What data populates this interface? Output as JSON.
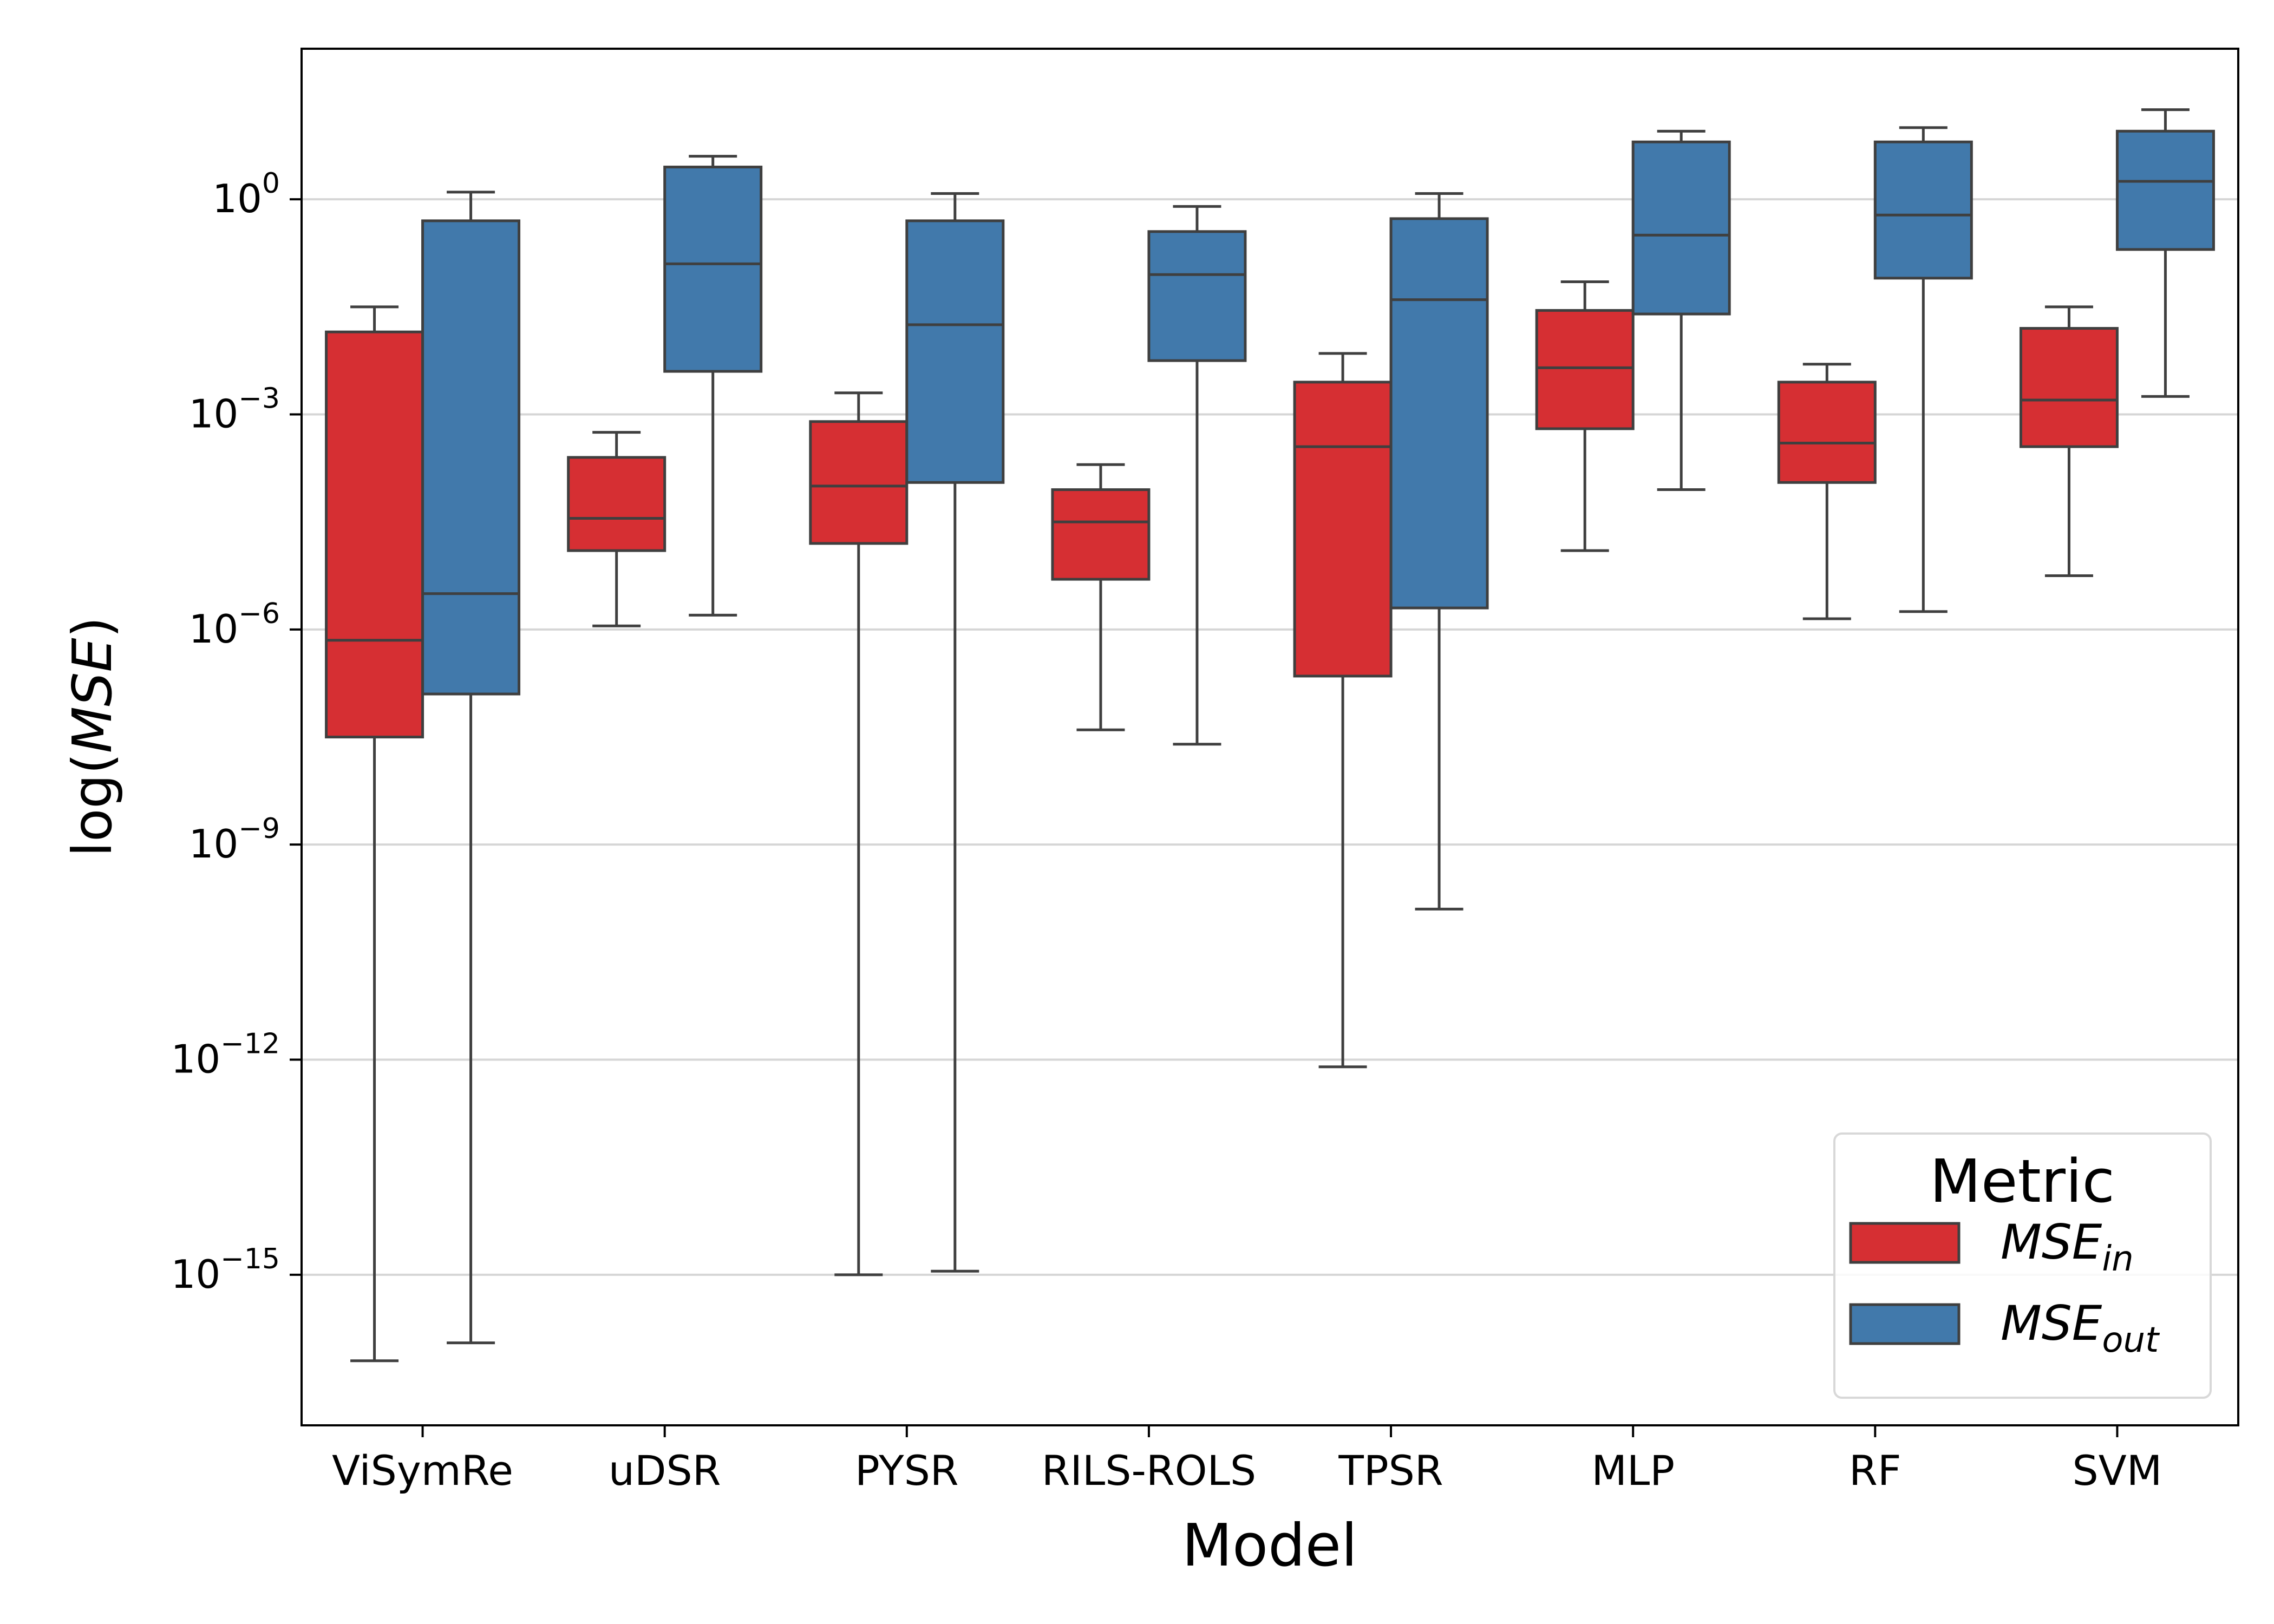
{
  "chart_data": {
    "type": "box",
    "xlabel": "Model",
    "ylabel": "log(MSE)",
    "y_scale": "log",
    "ylim_exponent": [
      -17.1,
      2.1
    ],
    "y_ticks": [
      {
        "base": "10",
        "exp": "0",
        "value": 0
      },
      {
        "base": "10",
        "exp": "−3",
        "value": -3
      },
      {
        "base": "10",
        "exp": "−6",
        "value": -6
      },
      {
        "base": "10",
        "exp": "−9",
        "value": -9
      },
      {
        "base": "10",
        "exp": "−12",
        "value": -12
      },
      {
        "base": "10",
        "exp": "−15",
        "value": -15
      }
    ],
    "grid": "horizontal",
    "categories": [
      "ViSymRe",
      "uDSR",
      "PYSR",
      "RILS-ROLS",
      "TPSR",
      "MLP",
      "RF",
      "SVM"
    ],
    "legend": {
      "title": "Metric",
      "placement": "bottom-right",
      "entries": [
        {
          "base": "MSE",
          "sub": "in",
          "color": "#d62f33"
        },
        {
          "base": "MSE",
          "sub": "out",
          "color": "#4179ab"
        }
      ]
    },
    "series": [
      {
        "key": "MSE_in",
        "color": "#d62f33",
        "boxes": [
          {
            "whisker_low": -16.2,
            "q1": -7.5,
            "median": -6.15,
            "q3": -1.85,
            "whisker_high": -1.5
          },
          {
            "whisker_low": -5.95,
            "q1": -4.9,
            "median": -4.45,
            "q3": -3.6,
            "whisker_high": -3.25
          },
          {
            "whisker_low": -15.0,
            "q1": -4.8,
            "median": -4.0,
            "q3": -3.1,
            "whisker_high": -2.7
          },
          {
            "whisker_low": -7.4,
            "q1": -5.3,
            "median": -4.5,
            "q3": -4.05,
            "whisker_high": -3.7
          },
          {
            "whisker_low": -12.1,
            "q1": -6.65,
            "median": -3.45,
            "q3": -2.55,
            "whisker_high": -2.15
          },
          {
            "whisker_low": -4.9,
            "q1": -3.2,
            "median": -2.35,
            "q3": -1.55,
            "whisker_high": -1.15
          },
          {
            "whisker_low": -5.85,
            "q1": -3.95,
            "median": -3.4,
            "q3": -2.55,
            "whisker_high": -2.3
          },
          {
            "whisker_low": -5.25,
            "q1": -3.45,
            "median": -2.8,
            "q3": -1.8,
            "whisker_high": -1.5
          }
        ]
      },
      {
        "key": "MSE_out",
        "color": "#4179ab",
        "boxes": [
          {
            "whisker_low": -15.95,
            "q1": -6.9,
            "median": -5.5,
            "q3": -0.3,
            "whisker_high": 0.1
          },
          {
            "whisker_low": -5.8,
            "q1": -2.4,
            "median": -0.9,
            "q3": 0.45,
            "whisker_high": 0.6
          },
          {
            "whisker_low": -14.95,
            "q1": -3.95,
            "median": -1.75,
            "q3": -0.3,
            "whisker_high": 0.08
          },
          {
            "whisker_low": -7.6,
            "q1": -2.25,
            "median": -1.05,
            "q3": -0.45,
            "whisker_high": -0.1
          },
          {
            "whisker_low": -9.9,
            "q1": -5.7,
            "median": -1.4,
            "q3": -0.27,
            "whisker_high": 0.08
          },
          {
            "whisker_low": -4.05,
            "q1": -1.6,
            "median": -0.5,
            "q3": 0.8,
            "whisker_high": 0.95
          },
          {
            "whisker_low": -5.75,
            "q1": -1.1,
            "median": -0.22,
            "q3": 0.8,
            "whisker_high": 1.0
          },
          {
            "whisker_low": -2.75,
            "q1": -0.7,
            "median": 0.25,
            "q3": 0.95,
            "whisker_high": 1.25
          }
        ]
      }
    ]
  }
}
